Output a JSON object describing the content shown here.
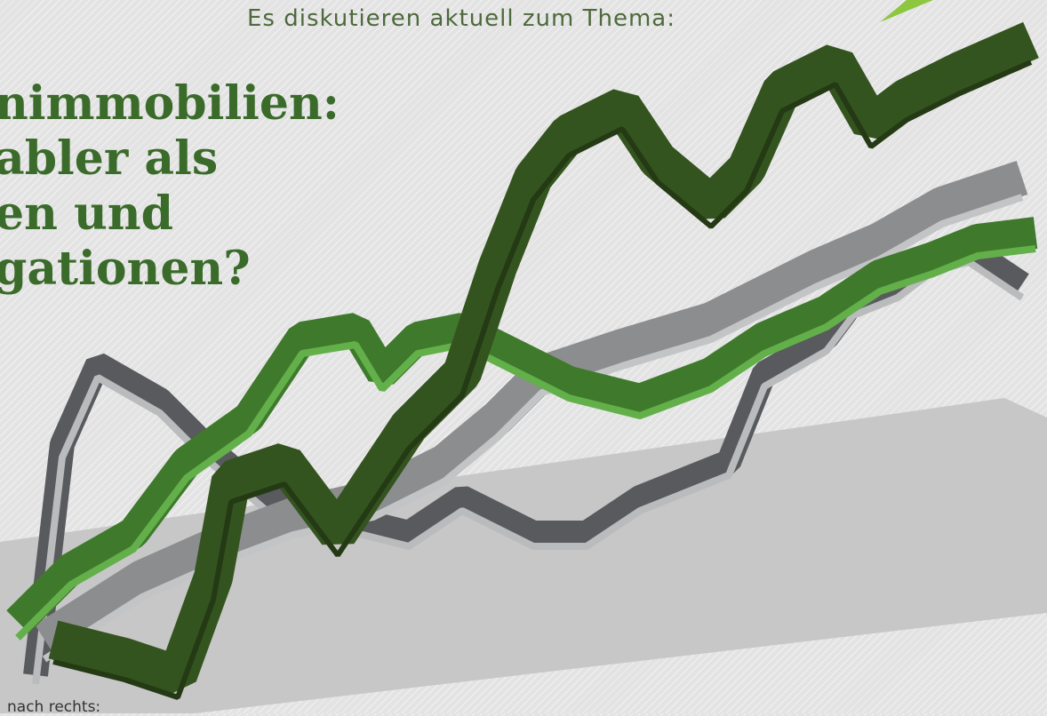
{
  "header": {
    "subtitle": "Es diskutieren aktuell zum Thema:"
  },
  "headline": {
    "lines": [
      "nimmobilien:",
      "abler als",
      "en und",
      "gationen?"
    ]
  },
  "footer": {
    "hint": "nach rechts:"
  },
  "artwork": {
    "description_icon": "3d-line-chart-illustration-icon",
    "colors": {
      "dark_green": "#34541f",
      "dark_green_side": "#2a4618",
      "mid_green": "#3f7a2c",
      "light_green": "#63b04b",
      "gray": "#8b8d8f",
      "gray_dark": "#595b5e",
      "gray_light": "#b7b9bb",
      "floor": "#c6c6c6",
      "accent": "#8dc63f"
    }
  }
}
